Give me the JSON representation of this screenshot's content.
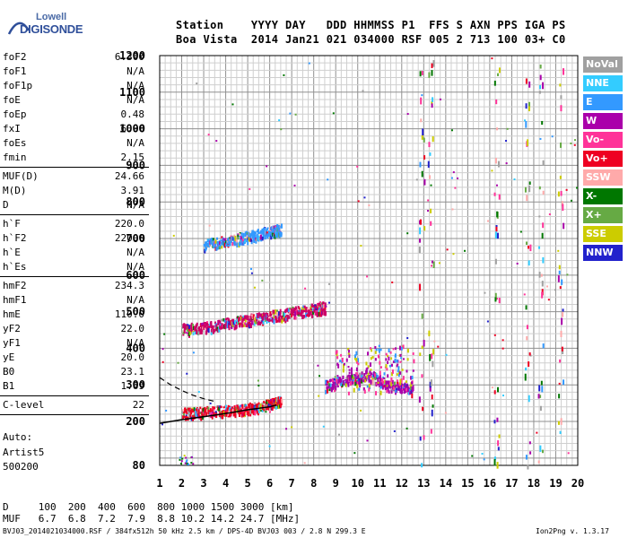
{
  "logo": {
    "line1": "Lowell",
    "line2": "DIGISONDE"
  },
  "header": {
    "line1": "Station    YYYY DAY   DDD HHMMSS P1  FFS S AXN PPS IGA PS",
    "line2": "Boa Vista  2014 Jan21 021 034000 RSF 005 2 713 100 03+ C0"
  },
  "params_groups": [
    [
      [
        "foF2",
        "6.300"
      ],
      [
        "foF1",
        "N/A"
      ],
      [
        "foF1p",
        "N/A"
      ],
      [
        "foE",
        "N/A"
      ],
      [
        "foEp",
        "0.48"
      ],
      [
        "fxI",
        "6.90"
      ],
      [
        "foEs",
        "N/A"
      ],
      [
        "fmin",
        "2.15"
      ]
    ],
    [
      [
        "MUF(D)",
        "24.66"
      ],
      [
        "M(D)",
        "3.91"
      ],
      [
        "D",
        "N/A"
      ]
    ],
    [
      [
        "h`F",
        "220.0"
      ],
      [
        "h`F2",
        "220.0"
      ],
      [
        "h`E",
        "N/A"
      ],
      [
        "h`Es",
        "N/A"
      ]
    ],
    [
      [
        "hmF2",
        "234.3"
      ],
      [
        "hmF1",
        "N/A"
      ],
      [
        "hmE",
        "110.0"
      ],
      [
        "yF2",
        "22.0"
      ],
      [
        "yF1",
        "N/A"
      ],
      [
        "yE",
        "20.0"
      ],
      [
        "B0",
        "23.1"
      ],
      [
        "B1",
        "1.69"
      ]
    ],
    [
      [
        "C-level",
        "22"
      ]
    ]
  ],
  "auto": {
    "line1": "Auto:",
    "line2": "Artist5",
    "line3": "500200"
  },
  "muf_table": {
    "d_line": "D     100  200  400  600  800 1000 1500 3000 [km]",
    "muf_line": "MUF   6.7  6.8  7.2  7.9  8.8 10.2 14.2 24.7 [MHz]"
  },
  "footer": {
    "left": "BVJ03_2014021034000.RSF / 384fx512h 50 kHz 2.5 km / DPS-4D BVJ03 003 / 2.8 N 299.3 E",
    "right": "Ion2Png v. 1.3.17"
  },
  "legend": [
    {
      "label": "NoVal",
      "color": "#a0a0a0"
    },
    {
      "label": "NNE",
      "color": "#33ccff"
    },
    {
      "label": "E",
      "color": "#3399ff"
    },
    {
      "label": "W",
      "color": "#aa00aa"
    },
    {
      "label": "Vo-",
      "color": "#ff3399"
    },
    {
      "label": "Vo+",
      "color": "#ee0022"
    },
    {
      "label": "SSW",
      "color": "#ffaaaa"
    },
    {
      "label": "X-",
      "color": "#007700"
    },
    {
      "label": "X+",
      "color": "#66aa44"
    },
    {
      "label": "SSE",
      "color": "#cccc00"
    },
    {
      "label": "NNW",
      "color": "#2222cc"
    }
  ],
  "chart_data": {
    "type": "scatter",
    "x_ticks": [
      "1",
      "2",
      "3",
      "4",
      "5",
      "6",
      "7",
      "8",
      "9",
      "10",
      "11",
      "12",
      "13",
      "14",
      "15",
      "16",
      "17",
      "18",
      "19",
      "20"
    ],
    "y_ticks": [
      "80",
      "200",
      "300",
      "400",
      "500",
      "600",
      "700",
      "800",
      "900",
      "1000",
      "1100",
      "1200"
    ],
    "xlim": [
      1,
      20
    ],
    "ylim": [
      80,
      1200
    ],
    "grid": true,
    "traces": [
      {
        "name": "F-trace",
        "color": "#ee0022",
        "x": [
          2.0,
          3.0,
          4.0,
          5.0,
          6.0,
          6.5
        ],
        "y": [
          225,
          228,
          232,
          238,
          248,
          258
        ]
      },
      {
        "name": "F2-multihop",
        "color": "#cc0066",
        "x": [
          2.0,
          3.0,
          4.0,
          5.0,
          6.0,
          7.0,
          8.0,
          8.5
        ],
        "y": [
          455,
          460,
          470,
          480,
          490,
          500,
          510,
          515
        ]
      },
      {
        "name": "F-triple",
        "color": "#3399ff",
        "x": [
          3.0,
          4.0,
          5.0,
          6.0,
          6.5
        ],
        "y": [
          685,
          695,
          708,
          720,
          730
        ]
      },
      {
        "name": "spread-F",
        "color": "#aa00aa",
        "x": [
          8.5,
          9.5,
          10.5,
          11.5,
          12.5
        ],
        "y": [
          300,
          315,
          330,
          300,
          290
        ]
      }
    ],
    "profile_solid": {
      "x": [
        1.0,
        2.0,
        3.0,
        4.0,
        5.0,
        6.0,
        6.3
      ],
      "y": [
        195,
        205,
        213,
        222,
        232,
        240,
        245
      ]
    },
    "profile_dashed": {
      "x": [
        1.0,
        1.5,
        2.0,
        2.5,
        3.0,
        3.5
      ],
      "y": [
        320,
        300,
        285,
        272,
        262,
        255
      ]
    }
  }
}
